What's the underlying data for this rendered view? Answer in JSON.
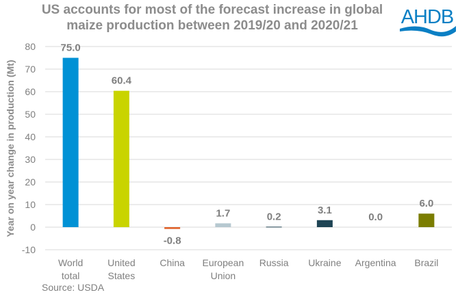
{
  "logo_text": "AHDB",
  "source": "Source: USDA",
  "colors": {
    "World total": "#0091d5",
    "United States": "#c9d400",
    "China": "#e0622a",
    "European Union": "#b6c8d0",
    "Russia": "#1e3e4e",
    "Ukraine": "#1e4454",
    "Argentina": "#1e4454",
    "Brazil": "#7b7d00"
  },
  "chart_data": {
    "type": "bar",
    "title": "US accounts for most of the forecast increase in global maize production between 2019/20 and 2020/21",
    "title_lines": [
      "US accounts for most of the forecast increase in global",
      "maize production between 2019/20 and 2020/21"
    ],
    "categories": [
      "World total",
      "United States",
      "China",
      "European Union",
      "Russia",
      "Ukraine",
      "Argentina",
      "Brazil"
    ],
    "category_lines": [
      [
        "World",
        "total"
      ],
      [
        "United",
        "States"
      ],
      [
        "China"
      ],
      [
        "European",
        "Union"
      ],
      [
        "Russia"
      ],
      [
        "Ukraine"
      ],
      [
        "Argentina"
      ],
      [
        "Brazil"
      ]
    ],
    "values": [
      75.0,
      60.4,
      -0.8,
      1.7,
      0.2,
      3.1,
      0.0,
      6.0
    ],
    "data_labels": [
      "75.0",
      "60.4",
      "-0.8",
      "1.7",
      "0.2",
      "3.1",
      "0.0",
      "6.0"
    ],
    "xlabel": "",
    "ylabel": "Year on year change in production (Mt)",
    "ylim": [
      -10,
      80
    ],
    "yticks": [
      -10,
      0,
      10,
      20,
      30,
      40,
      50,
      60,
      70,
      80
    ],
    "grid": true,
    "legend": "none"
  }
}
